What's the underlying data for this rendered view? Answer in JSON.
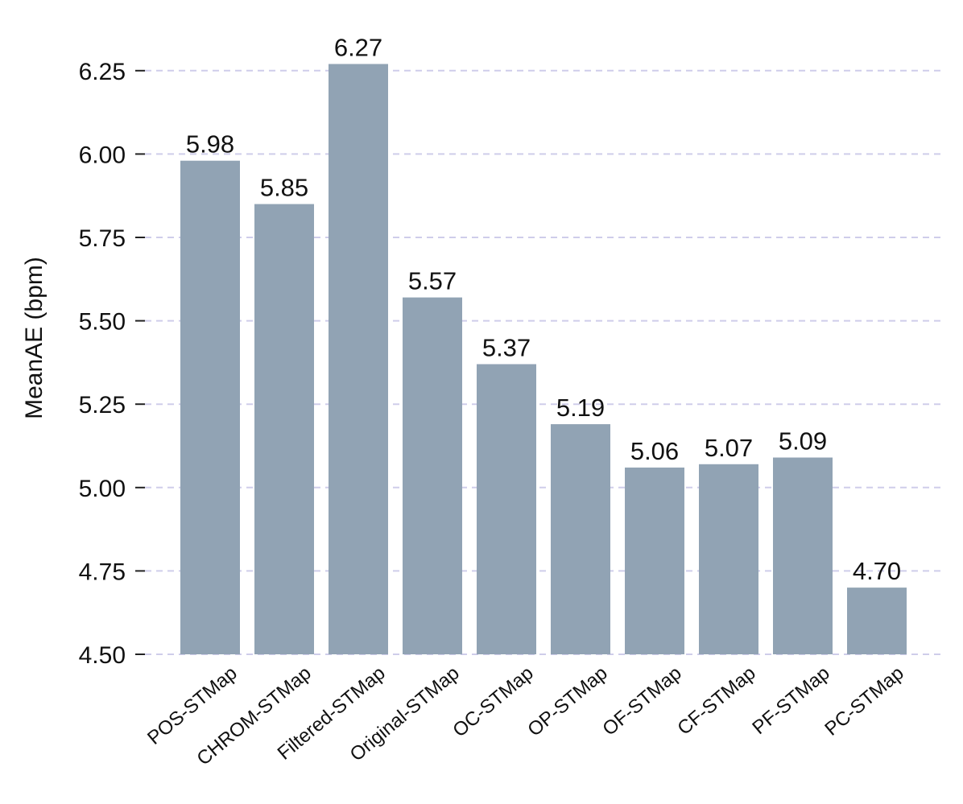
{
  "chart_data": {
    "type": "bar",
    "title": "",
    "xlabel": "",
    "ylabel": "MeanAE (bpm)",
    "ylim": [
      4.5,
      6.3
    ],
    "yticks": [
      "4.50",
      "4.75",
      "5.00",
      "5.25",
      "5.50",
      "5.75",
      "6.00",
      "6.25"
    ],
    "grid": "y, dashed",
    "categories": [
      "POS-STMap",
      "CHROM-STMap",
      "Filtered-STMap",
      "Original-STMap",
      "OC-STMap",
      "OP-STMap",
      "OF-STMap",
      "CF-STMap",
      "PF-STMap",
      "PC-STMap"
    ],
    "values": [
      5.98,
      5.85,
      6.27,
      5.57,
      5.37,
      5.19,
      5.06,
      5.07,
      5.09,
      4.7
    ],
    "value_labels": [
      "5.98",
      "5.85",
      "6.27",
      "5.57",
      "5.37",
      "5.19",
      "5.06",
      "5.07",
      "5.09",
      "4.70"
    ],
    "colors": {
      "bar": "#91a3b4",
      "grid": "#cfcdea",
      "text": "#111111"
    }
  }
}
